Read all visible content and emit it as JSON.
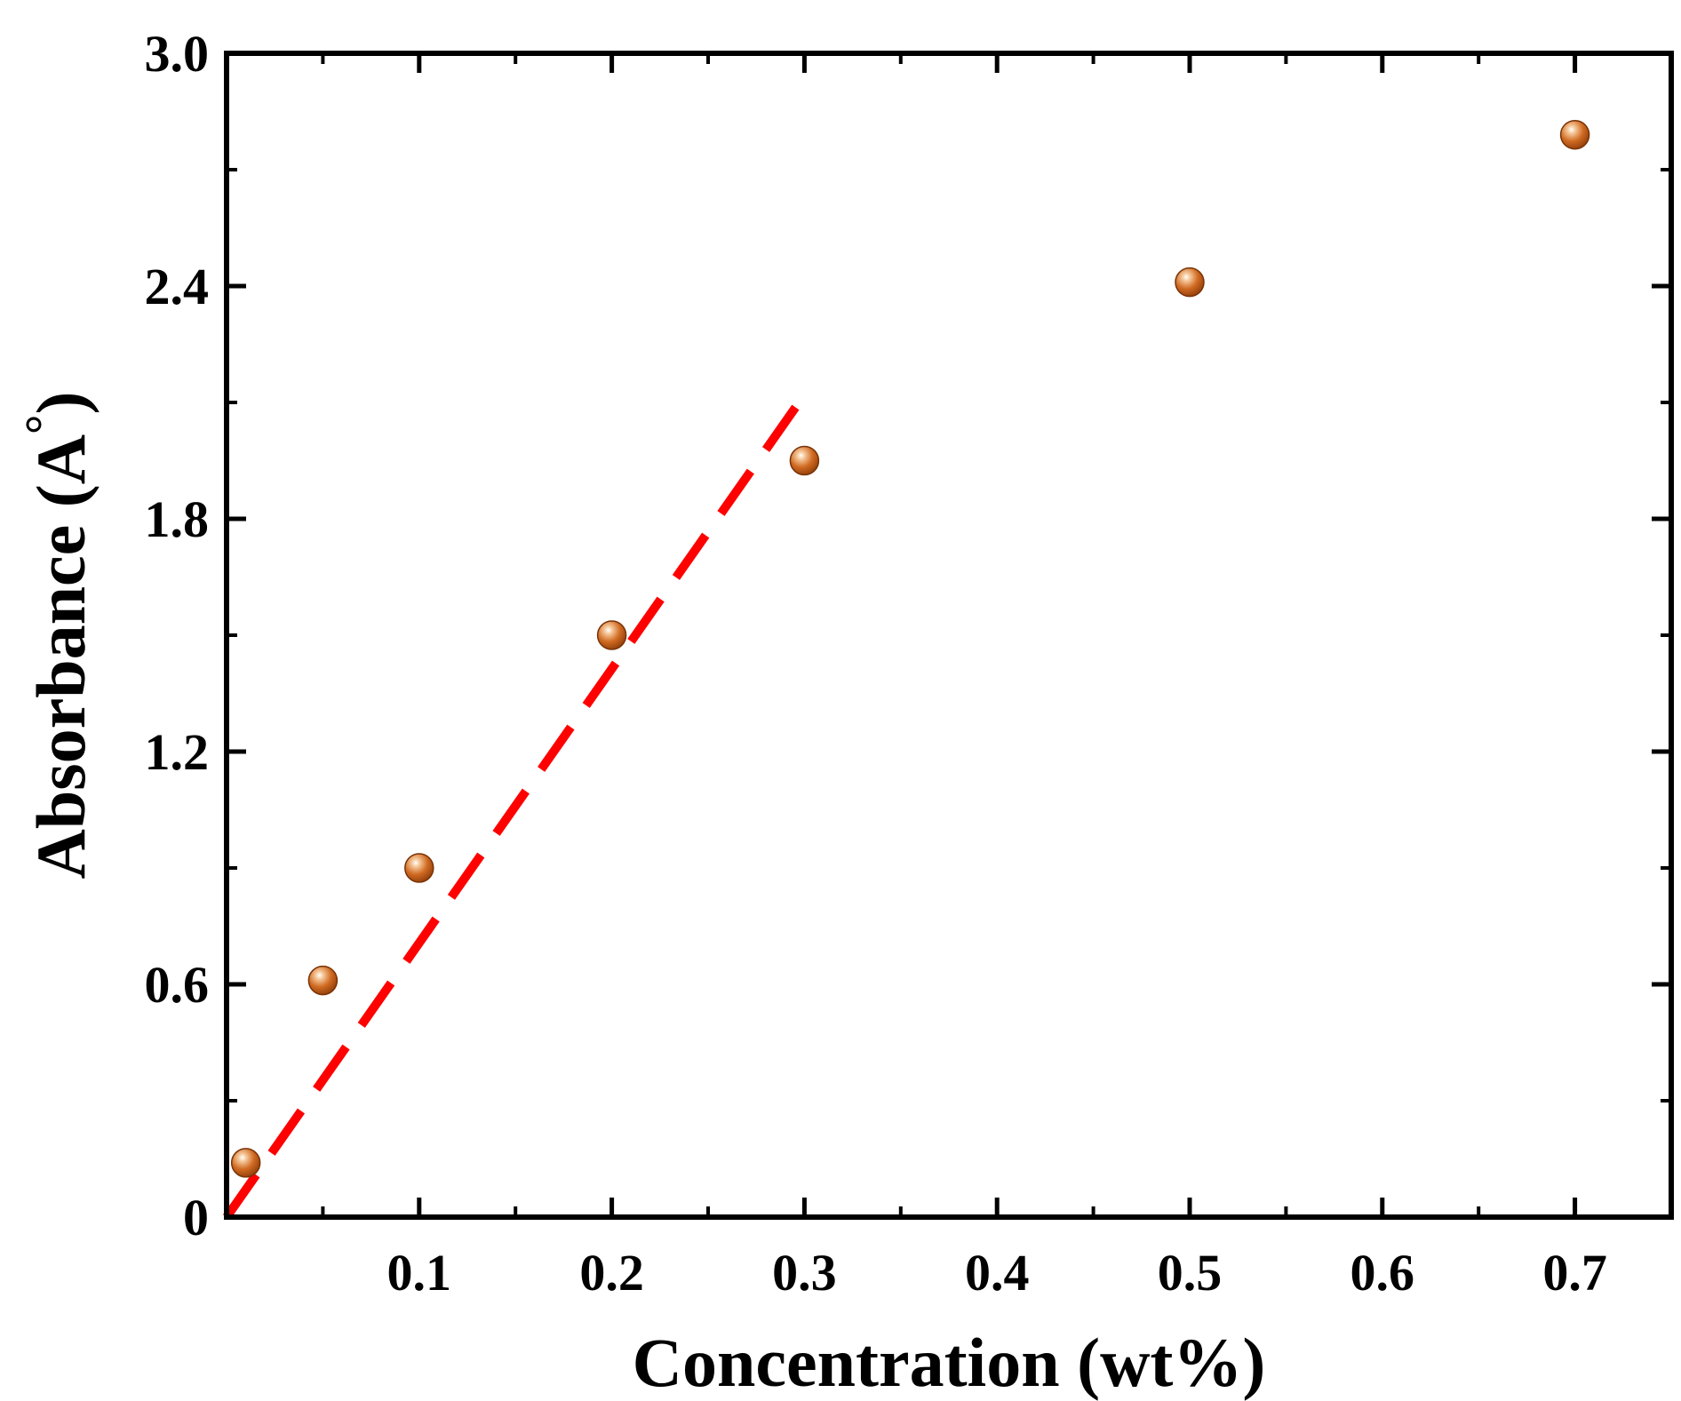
{
  "chart_data": {
    "type": "scatter",
    "title": "",
    "xlabel": "Concentration (wt%)",
    "ylabel": "Absorbance (A",
    "ylabel_superscript": "°",
    "ylabel_suffix": ")",
    "xlim": [
      0,
      0.75
    ],
    "ylim": [
      0,
      3.0
    ],
    "x_ticks": [
      0.1,
      0.2,
      0.3,
      0.4,
      0.5,
      0.6,
      0.7
    ],
    "x_tick_labels": [
      "0.1",
      "0.2",
      "0.3",
      "0.4",
      "0.5",
      "0.6",
      "0.7"
    ],
    "x_minor_ticks": [
      0.05,
      0.15,
      0.25,
      0.35,
      0.45,
      0.55,
      0.65
    ],
    "y_ticks": [
      0,
      0.6,
      1.2,
      1.8,
      2.4,
      3.0
    ],
    "y_tick_labels": [
      "0",
      "0.6",
      "1.2",
      "1.8",
      "2.4",
      "3.0"
    ],
    "y_minor_ticks": [
      0.3,
      0.9,
      1.5,
      2.1,
      2.7
    ],
    "grid": false,
    "series": [
      {
        "marker_color": "#c8621c",
        "points": [
          {
            "x": 0.01,
            "y": 0.14
          },
          {
            "x": 0.05,
            "y": 0.61
          },
          {
            "x": 0.1,
            "y": 0.9
          },
          {
            "x": 0.2,
            "y": 1.5
          },
          {
            "x": 0.3,
            "y": 1.95
          },
          {
            "x": 0.5,
            "y": 2.41
          },
          {
            "x": 0.7,
            "y": 2.79
          }
        ]
      }
    ],
    "fit_line": {
      "style": "dashed",
      "color": "#ff0000",
      "from": {
        "x": 0.0,
        "y": 0.0
      },
      "to": {
        "x": 0.3,
        "y": 2.12
      }
    }
  }
}
